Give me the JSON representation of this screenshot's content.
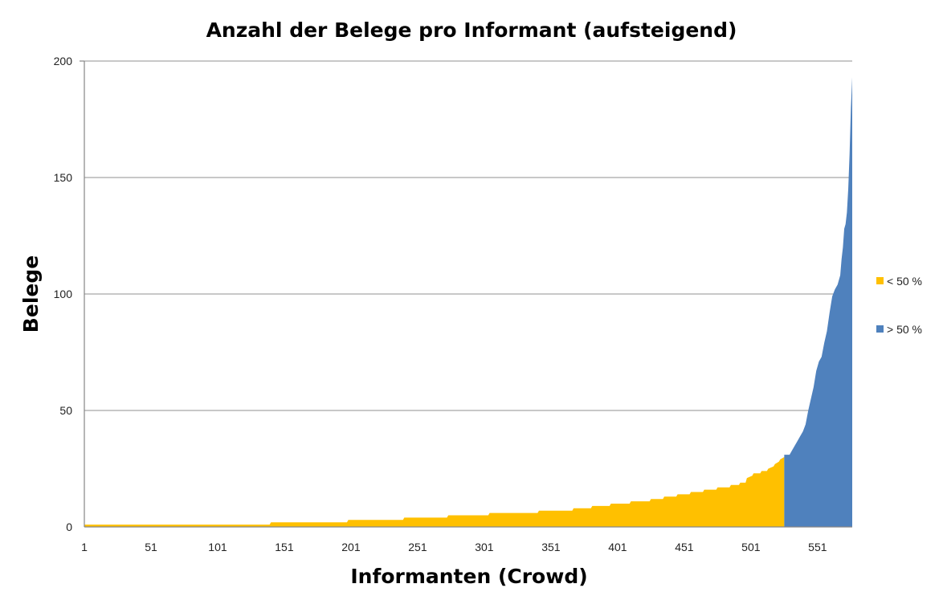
{
  "chart_data": {
    "type": "area",
    "title": "Anzahl der Belege pro Informant (aufsteigend)",
    "xlabel": "Informanten (Crowd)",
    "ylabel": "Belege",
    "xlim": [
      1,
      577
    ],
    "ylim": [
      0,
      200
    ],
    "yticks": [
      "0",
      "50",
      "100",
      "150",
      "200"
    ],
    "xticks": [
      "1",
      "51",
      "101",
      "151",
      "201",
      "251",
      "301",
      "351",
      "401",
      "451",
      "501",
      "551"
    ],
    "grid": true,
    "legend_position": "right",
    "colors": {
      "lt50": "#ffc000",
      "gt50": "#4f81bd"
    },
    "series": [
      {
        "name": "< 50 %",
        "x": [
          1,
          140,
          141,
          198,
          199,
          240,
          241,
          273,
          274,
          304,
          305,
          341,
          342,
          367,
          368,
          381,
          382,
          395,
          396,
          410,
          411,
          425,
          426,
          435,
          436,
          445,
          446,
          455,
          456,
          465,
          466,
          475,
          476,
          485,
          486,
          492,
          493,
          497,
          498,
          502,
          503,
          508,
          509,
          513,
          514,
          518,
          519,
          522,
          523,
          526
        ],
        "values": [
          1,
          1,
          2,
          2,
          3,
          3,
          4,
          4,
          5,
          5,
          6,
          6,
          7,
          7,
          8,
          8,
          9,
          9,
          10,
          10,
          11,
          11,
          12,
          12,
          13,
          13,
          14,
          14,
          15,
          15,
          16,
          16,
          17,
          17,
          18,
          18,
          19,
          19,
          21,
          22,
          23,
          23,
          24,
          24,
          25,
          26,
          27,
          28,
          29,
          30
        ]
      },
      {
        "name": "> 50 %",
        "x": [
          526,
          530,
          532,
          534,
          536,
          538,
          540,
          542,
          544,
          546,
          548,
          550,
          552,
          554,
          556,
          558,
          560,
          562,
          564,
          566,
          568,
          569,
          570,
          571,
          572,
          573,
          574,
          575,
          576,
          577
        ],
        "values": [
          31,
          31,
          33,
          35,
          37,
          39,
          41,
          44,
          50,
          55,
          60,
          67,
          71,
          73,
          79,
          84,
          92,
          99,
          102,
          104,
          108,
          115,
          120,
          128,
          130,
          135,
          145,
          160,
          180,
          193
        ]
      }
    ]
  }
}
